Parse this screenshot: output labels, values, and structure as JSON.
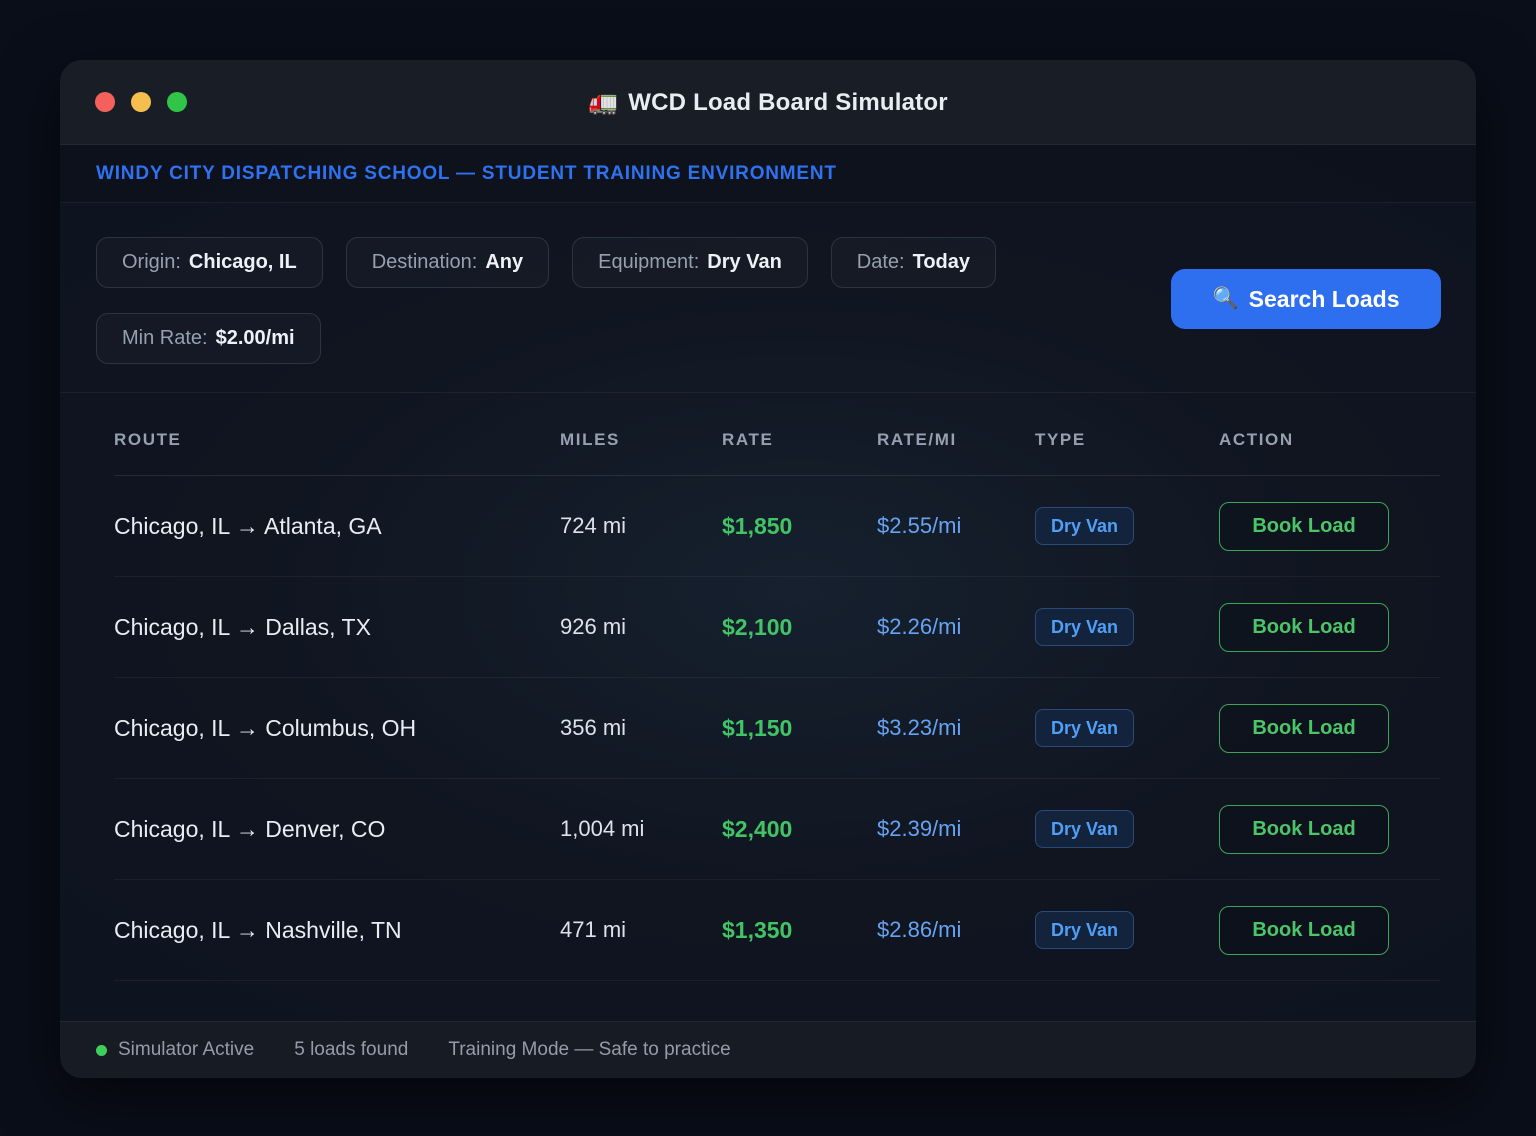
{
  "window": {
    "title_icon": "🚛",
    "title": "WCD Load Board Simulator",
    "banner": "WINDY CITY DISPATCHING SCHOOL — STUDENT TRAINING ENVIRONMENT"
  },
  "filters": {
    "chips": [
      {
        "label": "Origin:",
        "value": "Chicago, IL"
      },
      {
        "label": "Destination:",
        "value": "Any"
      },
      {
        "label": "Equipment:",
        "value": "Dry Van"
      },
      {
        "label": "Date:",
        "value": "Today"
      },
      {
        "label": "Min Rate:",
        "value": "$2.00/mi"
      }
    ],
    "search_button": {
      "icon": "🔍",
      "label": "Search Loads"
    }
  },
  "table": {
    "columns": [
      "Route",
      "Miles",
      "Rate",
      "Rate/mi",
      "Type",
      "Action"
    ],
    "rows": [
      {
        "route": "Chicago, IL → Atlanta, GA",
        "miles": "724 mi",
        "rate": "$1,850",
        "rate_per_mi": "$2.55/mi",
        "type": "Dry Van",
        "action": "Book Load"
      },
      {
        "route": "Chicago, IL → Dallas, TX",
        "miles": "926 mi",
        "rate": "$2,100",
        "rate_per_mi": "$2.26/mi",
        "type": "Dry Van",
        "action": "Book Load"
      },
      {
        "route": "Chicago, IL → Columbus, OH",
        "miles": "356 mi",
        "rate": "$1,150",
        "rate_per_mi": "$3.23/mi",
        "type": "Dry Van",
        "action": "Book Load"
      },
      {
        "route": "Chicago, IL → Denver, CO",
        "miles": "1,004 mi",
        "rate": "$2,400",
        "rate_per_mi": "$2.39/mi",
        "type": "Dry Van",
        "action": "Book Load"
      },
      {
        "route": "Chicago, IL → Nashville, TN",
        "miles": "471 mi",
        "rate": "$1,350",
        "rate_per_mi": "$2.86/mi",
        "type": "Dry Van",
        "action": "Book Load"
      }
    ]
  },
  "statusbar": {
    "simulator_status": "Simulator Active",
    "loads_found": "5 loads found",
    "mode": "Training Mode — Safe to practice"
  },
  "colors": {
    "accent_blue": "#2e6ff0",
    "banner_blue": "#2f72f0",
    "rate_green": "#41c465",
    "rate_per_mi_blue": "#66a3f2",
    "badge_blue": "#4f9ff7",
    "book_green": "#4cc569",
    "status_green": "#3ecf5a",
    "traffic_red": "#f4605c",
    "traffic_yellow": "#f6be4f",
    "traffic_green": "#30c448"
  }
}
